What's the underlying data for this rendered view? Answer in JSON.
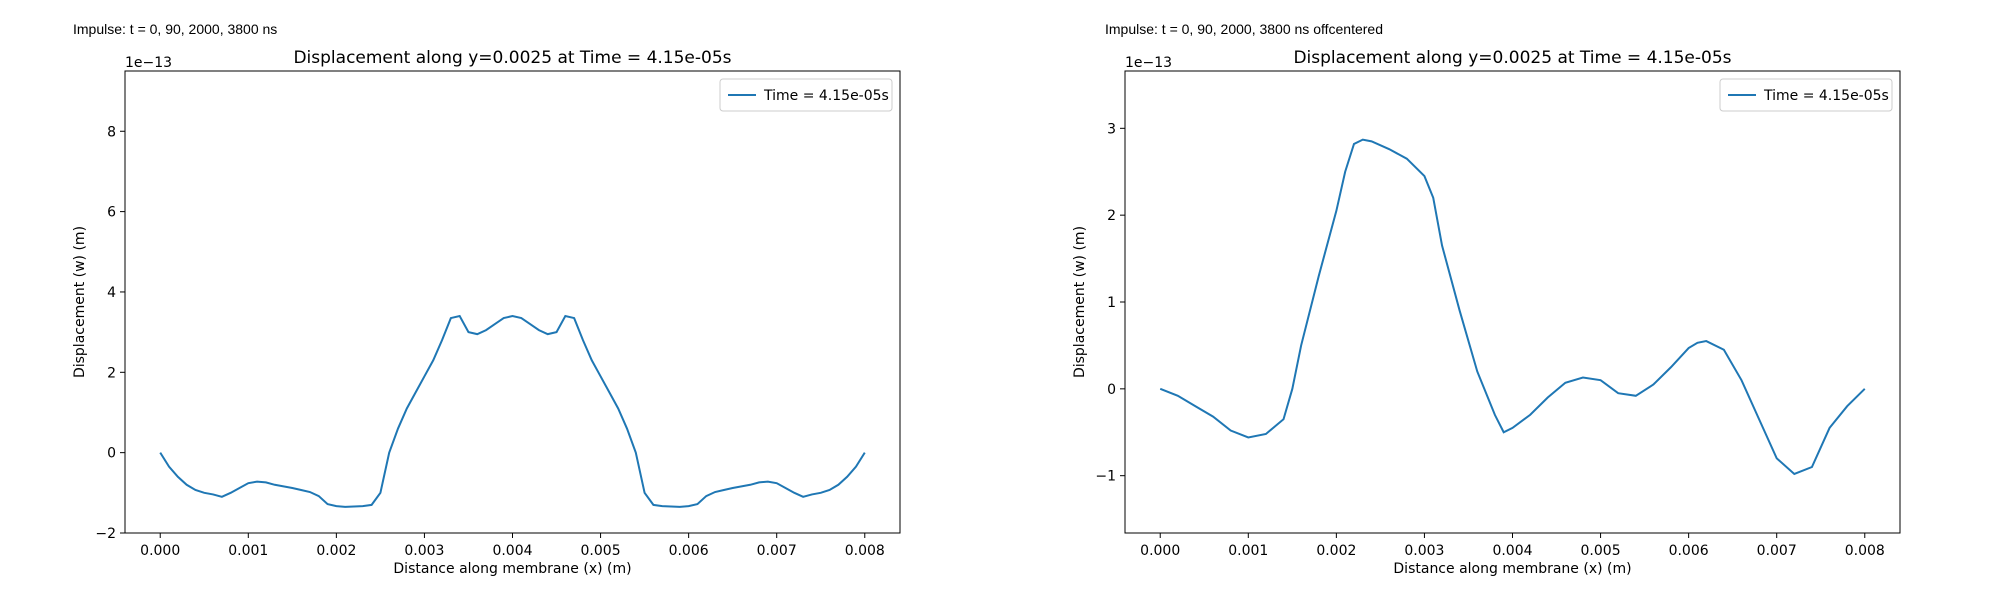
{
  "chart_data": [
    {
      "type": "line",
      "subtitle": "Impulse: t = 0, 90, 2000, 3800 ns",
      "title": "Displacement along y=0.0025 at Time = 4.15e-05s",
      "xlabel": "Distance along membrane (x) (m)",
      "ylabel": "Displacement (w) (m)",
      "y_offset_label": "1e−13",
      "legend": "upper right",
      "x": [
        0,
        0.0001,
        0.0002,
        0.0003,
        0.0004,
        0.0005,
        0.0006,
        0.0007,
        0.0008,
        0.0009,
        0.001,
        0.0011,
        0.0012,
        0.0013,
        0.0014,
        0.0015,
        0.0016,
        0.0017,
        0.0018,
        0.0019,
        0.002,
        0.0021,
        0.0022,
        0.0023,
        0.0024,
        0.0025,
        0.0026,
        0.0027,
        0.0028,
        0.0029,
        0.003,
        0.0031,
        0.0032,
        0.0033,
        0.0034,
        0.0035,
        0.0036,
        0.0037,
        0.0038,
        0.0039,
        0.004,
        0.0041,
        0.0042,
        0.0043,
        0.0044,
        0.0045,
        0.0046,
        0.0047,
        0.0048,
        0.0049,
        0.005,
        0.0051,
        0.0052,
        0.0053,
        0.0054,
        0.0055,
        0.0056,
        0.0057,
        0.0058,
        0.0059,
        0.006,
        0.0061,
        0.0062,
        0.0063,
        0.0064,
        0.0065,
        0.0066,
        0.0067,
        0.0068,
        0.0069,
        0.007,
        0.0071,
        0.0072,
        0.0073,
        0.0074,
        0.0075,
        0.0076,
        0.0077,
        0.0078,
        0.0079,
        0.008
      ],
      "series": [
        {
          "name": "Time = 4.15e-05s",
          "color": "#1f77b4",
          "values": [
            0,
            -0.35,
            -0.6,
            -0.8,
            -0.93,
            -1.0,
            -1.04,
            -1.1,
            -1.0,
            -0.88,
            -0.76,
            -0.72,
            -0.74,
            -0.8,
            -0.84,
            -0.88,
            -0.93,
            -0.98,
            -1.08,
            -1.28,
            -1.33,
            -1.35,
            -1.34,
            -1.33,
            -1.3,
            -1.0,
            0,
            0.6,
            1.1,
            1.5,
            1.9,
            2.3,
            2.8,
            3.35,
            3.4,
            3.0,
            2.95,
            3.05,
            3.2,
            3.35,
            3.4,
            3.35,
            3.2,
            3.05,
            2.95,
            3.0,
            3.4,
            3.35,
            2.8,
            2.3,
            1.9,
            1.5,
            1.1,
            0.6,
            0,
            -1.0,
            -1.3,
            -1.33,
            -1.34,
            -1.35,
            -1.33,
            -1.28,
            -1.08,
            -0.98,
            -0.93,
            -0.88,
            -0.84,
            -0.8,
            -0.74,
            -0.72,
            -0.76,
            -0.88,
            -1.0,
            -1.1,
            -1.04,
            -1.0,
            -0.93,
            -0.8,
            -0.6,
            -0.35,
            0
          ]
        }
      ],
      "xlim": [
        -0.0004,
        0.0084
      ],
      "xticks": [
        {
          "value": 0,
          "label": "0.000"
        },
        {
          "value": 0.001,
          "label": "0.001"
        },
        {
          "value": 0.002,
          "label": "0.002"
        },
        {
          "value": 0.003,
          "label": "0.003"
        },
        {
          "value": 0.004,
          "label": "0.004"
        },
        {
          "value": 0.005,
          "label": "0.005"
        },
        {
          "value": 0.006,
          "label": "0.006"
        },
        {
          "value": 0.007,
          "label": "0.007"
        },
        {
          "value": 0.008,
          "label": "0.008"
        }
      ],
      "ylim": [
        -2,
        9.5
      ],
      "yticks": [
        {
          "value": -2,
          "label": "−2"
        },
        0,
        2,
        4,
        6,
        8
      ]
    },
    {
      "type": "line",
      "subtitle": "Impulse: t = 0, 90, 2000, 3800 ns offcentered",
      "title": "Displacement along y=0.0025 at Time = 4.15e-05s",
      "xlabel": "Distance along membrane (x) (m)",
      "ylabel": "Displacement (w) (m)",
      "y_offset_label": "1e−13",
      "legend": "upper right",
      "x": [
        0,
        0.0002,
        0.0004,
        0.0006,
        0.0008,
        0.001,
        0.0012,
        0.0014,
        0.0015,
        0.0016,
        0.0018,
        0.002,
        0.0021,
        0.0022,
        0.0023,
        0.0024,
        0.0026,
        0.0028,
        0.003,
        0.0031,
        0.0032,
        0.0034,
        0.0036,
        0.0038,
        0.0039,
        0.004,
        0.0042,
        0.0044,
        0.0046,
        0.0048,
        0.005,
        0.0052,
        0.0054,
        0.0056,
        0.0058,
        0.006,
        0.0061,
        0.0062,
        0.0064,
        0.0066,
        0.0068,
        0.007,
        0.0072,
        0.0074,
        0.0076,
        0.0078,
        0.008
      ],
      "series": [
        {
          "name": "Time = 4.15e-05s",
          "color": "#1f77b4",
          "values": [
            0,
            -0.08,
            -0.2,
            -0.32,
            -0.48,
            -0.56,
            -0.52,
            -0.35,
            0,
            0.5,
            1.3,
            2.05,
            2.5,
            2.82,
            2.87,
            2.85,
            2.76,
            2.65,
            2.45,
            2.2,
            1.65,
            0.9,
            0.2,
            -0.3,
            -0.5,
            -0.45,
            -0.3,
            -0.1,
            0.07,
            0.13,
            0.1,
            -0.05,
            -0.08,
            0.05,
            0.25,
            0.47,
            0.53,
            0.55,
            0.45,
            0.1,
            -0.35,
            -0.8,
            -0.98,
            -0.9,
            -0.45,
            -0.2,
            0
          ]
        }
      ],
      "xlim": [
        -0.0004,
        0.0084
      ],
      "xticks": [
        {
          "value": 0,
          "label": "0.000"
        },
        {
          "value": 0.001,
          "label": "0.001"
        },
        {
          "value": 0.002,
          "label": "0.002"
        },
        {
          "value": 0.003,
          "label": "0.003"
        },
        {
          "value": 0.004,
          "label": "0.004"
        },
        {
          "value": 0.005,
          "label": "0.005"
        },
        {
          "value": 0.006,
          "label": "0.006"
        },
        {
          "value": 0.007,
          "label": "0.007"
        },
        {
          "value": 0.008,
          "label": "0.008"
        }
      ],
      "ylim": [
        -1.66,
        3.66
      ],
      "yticks": [
        {
          "value": -1,
          "label": "−1"
        },
        0,
        1,
        2,
        3
      ]
    }
  ]
}
